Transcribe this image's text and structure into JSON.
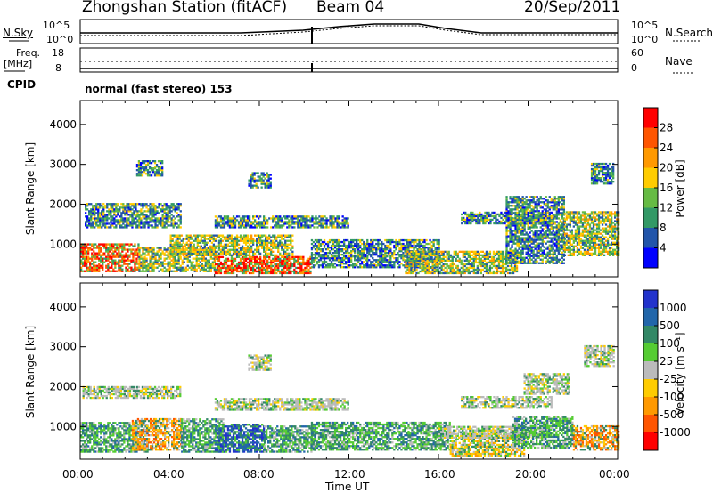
{
  "header": {
    "station": "Zhongshan Station (fitACF)",
    "beam": "Beam 04",
    "date": "20/Sep/2011"
  },
  "nsky_panel": {
    "left_label": "N.Sky",
    "left_ticks": [
      "10^5",
      "10^0"
    ],
    "right_label": "N.Search",
    "right_ticks": [
      "10^5",
      "10^0"
    ]
  },
  "freq_panel": {
    "left_label_line1": "Freq.",
    "left_label_line2": "[MHz]",
    "left_ticks": [
      "18",
      "8"
    ],
    "right_label": "Nave",
    "right_ticks": [
      "60",
      "0"
    ]
  },
  "cpid_panel": {
    "label": "CPID",
    "mode": "normal (fast stereo) 153"
  },
  "x_axis": {
    "ticks": [
      "00:00",
      "04:00",
      "08:00",
      "12:00",
      "16:00",
      "20:00",
      "00:00"
    ],
    "label": "Time UT"
  },
  "chart_data": [
    {
      "type": "heatmap",
      "quantity": "Power",
      "xlabel": "Time UT",
      "ylabel": "Slant Range [km]",
      "y_ticks": [
        1000,
        2000,
        3000,
        4000
      ],
      "ylim": [
        180,
        4600
      ],
      "xlim_hours": [
        0,
        24
      ],
      "colorbar": {
        "label": "Power [dB]",
        "ticks": [
          "28",
          "24",
          "20",
          "16",
          "12",
          "8",
          "4"
        ],
        "colors": [
          "#ff0000",
          "#ff5500",
          "#ff9900",
          "#ffcc00",
          "#66bb44",
          "#339966",
          "#2255aa",
          "#0000ff"
        ]
      },
      "regions": [
        {
          "t0": 0.0,
          "t1": 2.6,
          "r0": 300,
          "r1": 1000,
          "level": "high"
        },
        {
          "t0": 2.6,
          "t1": 6.0,
          "r0": 300,
          "r1": 900,
          "level": "mid"
        },
        {
          "t0": 6.0,
          "t1": 10.3,
          "r0": 250,
          "r1": 700,
          "level": "high"
        },
        {
          "t0": 4.0,
          "t1": 9.5,
          "r0": 700,
          "r1": 1200,
          "level": "mid"
        },
        {
          "t0": 0.2,
          "t1": 4.5,
          "r0": 1400,
          "r1": 2000,
          "level": "low"
        },
        {
          "t0": 6.0,
          "t1": 12.0,
          "r0": 1400,
          "r1": 1700,
          "level": "low"
        },
        {
          "t0": 10.3,
          "t1": 16.0,
          "r0": 400,
          "r1": 1100,
          "level": "low"
        },
        {
          "t0": 14.5,
          "t1": 19.5,
          "r0": 250,
          "r1": 800,
          "level": "mid"
        },
        {
          "t0": 19.0,
          "t1": 21.6,
          "r0": 500,
          "r1": 2200,
          "level": "low"
        },
        {
          "t0": 21.6,
          "t1": 24.0,
          "r0": 700,
          "r1": 1800,
          "level": "mid"
        },
        {
          "t0": 17.0,
          "t1": 21.0,
          "r0": 1500,
          "r1": 1800,
          "level": "low"
        },
        {
          "t0": 2.5,
          "t1": 3.7,
          "r0": 2700,
          "r1": 3100,
          "level": "low"
        },
        {
          "t0": 7.5,
          "t1": 8.5,
          "r0": 2400,
          "r1": 2800,
          "level": "low"
        },
        {
          "t0": 22.8,
          "t1": 23.8,
          "r0": 2500,
          "r1": 3000,
          "level": "low"
        }
      ]
    },
    {
      "type": "heatmap",
      "quantity": "Velocity",
      "xlabel": "Time UT",
      "ylabel": "Slant Range [km]",
      "y_ticks": [
        1000,
        2000,
        3000,
        4000
      ],
      "ylim": [
        180,
        4600
      ],
      "xlim_hours": [
        0,
        24
      ],
      "colorbar": {
        "label": "Velocity [m s⁻¹]",
        "ticks": [
          "1000",
          "500",
          "100",
          "25",
          "-25",
          "-100",
          "-500",
          "-1000"
        ],
        "colors": [
          "#2233cc",
          "#2266aa",
          "#338866",
          "#55cc33",
          "#bbbbbb",
          "#ffcc00",
          "#ff9900",
          "#ff5500",
          "#ff0000"
        ]
      },
      "regions": [
        {
          "t0": 0.0,
          "t1": 3.0,
          "r0": 350,
          "r1": 1100,
          "level": "green"
        },
        {
          "t0": 2.3,
          "t1": 4.5,
          "r0": 400,
          "r1": 1200,
          "level": "orange"
        },
        {
          "t0": 4.5,
          "t1": 6.4,
          "r0": 350,
          "r1": 1200,
          "level": "green"
        },
        {
          "t0": 6.0,
          "t1": 8.2,
          "r0": 350,
          "r1": 1050,
          "level": "blue"
        },
        {
          "t0": 8.2,
          "t1": 10.5,
          "r0": 350,
          "r1": 1000,
          "level": "green"
        },
        {
          "t0": 0.1,
          "t1": 4.5,
          "r0": 1700,
          "r1": 2000,
          "level": "gray"
        },
        {
          "t0": 6.0,
          "t1": 12.0,
          "r0": 1400,
          "r1": 1700,
          "level": "gray"
        },
        {
          "t0": 10.3,
          "t1": 16.5,
          "r0": 400,
          "r1": 1100,
          "level": "green"
        },
        {
          "t0": 16.5,
          "t1": 19.8,
          "r0": 250,
          "r1": 800,
          "level": "yellow"
        },
        {
          "t0": 16.0,
          "t1": 20.8,
          "r0": 700,
          "r1": 1000,
          "level": "gray"
        },
        {
          "t0": 19.3,
          "t1": 22.0,
          "r0": 450,
          "r1": 1250,
          "level": "green"
        },
        {
          "t0": 22.0,
          "t1": 24.0,
          "r0": 400,
          "r1": 1000,
          "level": "orange"
        },
        {
          "t0": 17.0,
          "t1": 21.0,
          "r0": 1450,
          "r1": 1750,
          "level": "gray"
        },
        {
          "t0": 19.8,
          "t1": 21.8,
          "r0": 1800,
          "r1": 2300,
          "level": "gray"
        },
        {
          "t0": 22.5,
          "t1": 23.8,
          "r0": 2500,
          "r1": 3000,
          "level": "gray"
        },
        {
          "t0": 7.5,
          "t1": 8.5,
          "r0": 2400,
          "r1": 2800,
          "level": "gray"
        }
      ]
    }
  ]
}
